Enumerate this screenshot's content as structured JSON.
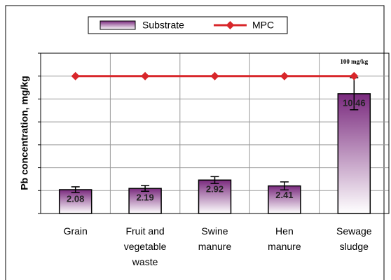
{
  "chart_data": {
    "type": "bar",
    "y_label": "Pb concentration, mg/kg",
    "annotation": "100 mg/kg",
    "categories": [
      "Grain",
      "Fruit and vegetable waste",
      "Swine manure",
      "Hen manure",
      "Sewage sludge"
    ],
    "series": [
      {
        "name": "Substrate",
        "color": "#7a2a7e",
        "values": [
          2.08,
          2.19,
          2.92,
          2.41,
          10.46
        ],
        "errors": [
          0.25,
          0.25,
          0.3,
          0.35,
          1.4
        ]
      },
      {
        "name": "MPC",
        "type": "line",
        "color": "#d8262a",
        "values": [
          12,
          12,
          12,
          12,
          12
        ]
      }
    ],
    "ylim": [
      0,
      14
    ],
    "yticks": [
      0,
      2,
      4,
      6,
      8,
      10,
      12,
      14
    ],
    "grid": true
  }
}
